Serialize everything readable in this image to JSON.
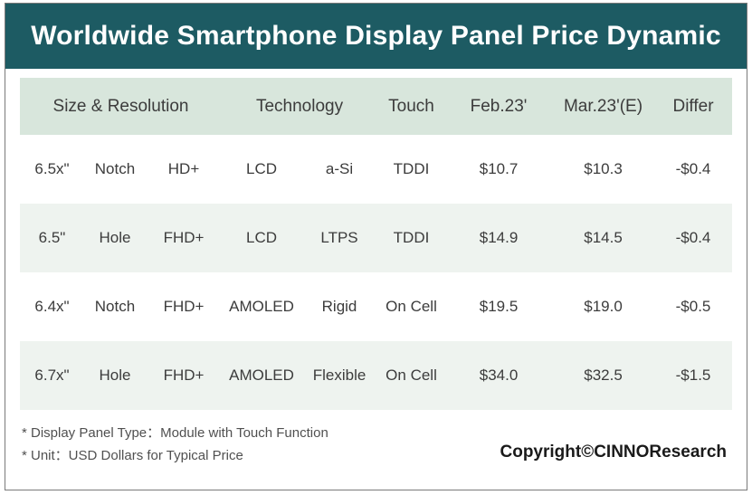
{
  "title": "Worldwide Smartphone Display Panel Price Dynamic",
  "headers": {
    "size_resolution": "Size & Resolution",
    "technology": "Technology",
    "touch": "Touch",
    "feb": "Feb.23'",
    "mar": "Mar.23'(E)",
    "differ": "Differ"
  },
  "rows": [
    {
      "size": "6.5x\"",
      "form": "Notch",
      "res": "HD+",
      "tech": "LCD",
      "backplane": "a-Si",
      "touch": "TDDI",
      "feb": "$10.7",
      "mar": "$10.3",
      "differ": "-$0.4"
    },
    {
      "size": "6.5\"",
      "form": "Hole",
      "res": "FHD+",
      "tech": "LCD",
      "backplane": "LTPS",
      "touch": "TDDI",
      "feb": "$14.9",
      "mar": "$14.5",
      "differ": "-$0.4"
    },
    {
      "size": "6.4x\"",
      "form": "Notch",
      "res": "FHD+",
      "tech": "AMOLED",
      "backplane": "Rigid",
      "touch": "On Cell",
      "feb": "$19.5",
      "mar": "$19.0",
      "differ": "-$0.5"
    },
    {
      "size": "6.7x\"",
      "form": "Hole",
      "res": "FHD+",
      "tech": "AMOLED",
      "backplane": "Flexible",
      "touch": "On Cell",
      "feb": "$34.0",
      "mar": "$32.5",
      "differ": "-$1.5"
    }
  ],
  "notes": [
    "* Display Panel Type：Module with Touch Function",
    "* Unit：USD Dollars for Typical Price"
  ],
  "copyright": "Copyright©CINNOResearch",
  "colors": {
    "title_bg": "#1d5b63",
    "header_bg": "#d8e6dc",
    "alt_row_bg": "#eef3ef"
  }
}
